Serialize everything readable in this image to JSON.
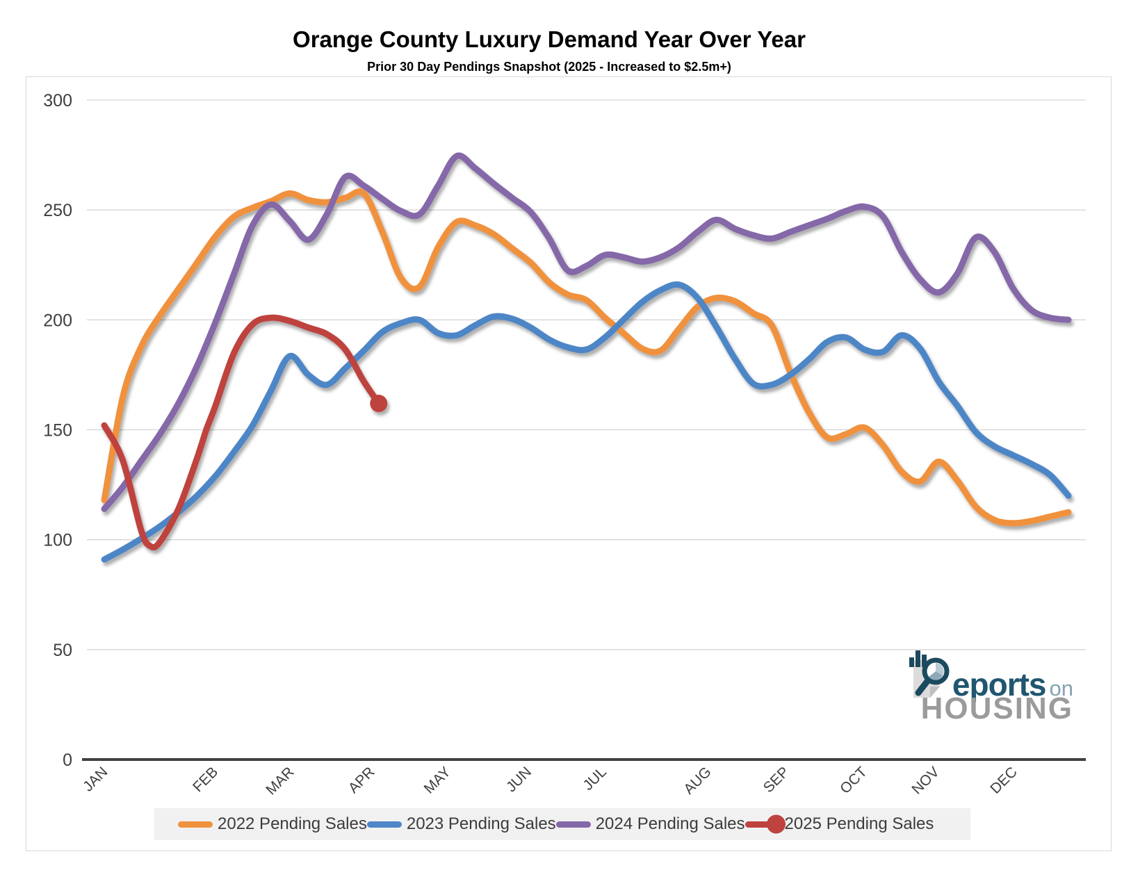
{
  "title": "Orange County Luxury Demand Year Over Year",
  "subtitle": "Prior 30 Day Pendings Snapshot (2025 - Increased to $2.5m+)",
  "logo": {
    "word_reports": "eports",
    "word_on": "on",
    "word_housing": "HOUSING"
  },
  "chart_data": {
    "type": "line",
    "title": "Orange County Luxury Demand Year Over Year",
    "subtitle": "Prior 30 Day Pendings Snapshot (2025 - Increased to $2.5m+)",
    "xlabel": "",
    "ylabel": "",
    "ylim": [
      0,
      300
    ],
    "y_ticks": [
      0,
      50,
      100,
      150,
      200,
      250,
      300
    ],
    "grid": "horizontal",
    "legend_position": "bottom",
    "x_unit": "week-of-year",
    "months": [
      {
        "label": "JAN",
        "week": 1
      },
      {
        "label": "FEB",
        "week": 6.95
      },
      {
        "label": "MAR",
        "week": 11.05
      },
      {
        "label": "APR",
        "week": 15.4
      },
      {
        "label": "MAY",
        "week": 19.5
      },
      {
        "label": "JUN",
        "week": 23.85
      },
      {
        "label": "JUL",
        "week": 27.9
      },
      {
        "label": "AUG",
        "week": 33.55
      },
      {
        "label": "SEP",
        "week": 37.75
      },
      {
        "label": "OCT",
        "week": 41.95
      },
      {
        "label": "NOV",
        "week": 45.85
      },
      {
        "label": "DEC",
        "week": 50.05
      }
    ],
    "colors": {
      "grid": "#d6d6d6",
      "axis": "#404040",
      "tick_text": "#3f3f3f"
    },
    "series": [
      {
        "name": "2022 Pending Sales",
        "color": "#f0913e",
        "end_marker": false,
        "points": [
          [
            1,
            118
          ],
          [
            2,
            165
          ],
          [
            3,
            188
          ],
          [
            4,
            202
          ],
          [
            5,
            214
          ],
          [
            6,
            226
          ],
          [
            7,
            238
          ],
          [
            8,
            247
          ],
          [
            9,
            251
          ],
          [
            10,
            254
          ],
          [
            11,
            257.5
          ],
          [
            12,
            254.5
          ],
          [
            13,
            253.5
          ],
          [
            14,
            255.5
          ],
          [
            15,
            257.5
          ],
          [
            16,
            240
          ],
          [
            17,
            219
          ],
          [
            18,
            215
          ],
          [
            19,
            233
          ],
          [
            20,
            244.5
          ],
          [
            21,
            243
          ],
          [
            22,
            239
          ],
          [
            23,
            232.5
          ],
          [
            24,
            226
          ],
          [
            25,
            217
          ],
          [
            26,
            211.5
          ],
          [
            27,
            209
          ],
          [
            28,
            201
          ],
          [
            29,
            194
          ],
          [
            30,
            187
          ],
          [
            31,
            186
          ],
          [
            32,
            196
          ],
          [
            33,
            206
          ],
          [
            34,
            210
          ],
          [
            35,
            208.5
          ],
          [
            36,
            203
          ],
          [
            37,
            197.5
          ],
          [
            38,
            176
          ],
          [
            39,
            158
          ],
          [
            40,
            146.5
          ],
          [
            41,
            148
          ],
          [
            42,
            151
          ],
          [
            43,
            143
          ],
          [
            44,
            131
          ],
          [
            45,
            126.5
          ],
          [
            46,
            135.5
          ],
          [
            47,
            127
          ],
          [
            48,
            115
          ],
          [
            49,
            109
          ],
          [
            50,
            107.5
          ],
          [
            51,
            108.5
          ],
          [
            52,
            110.5
          ],
          [
            53,
            112.5
          ]
        ]
      },
      {
        "name": "2023 Pending Sales",
        "color": "#4e86c6",
        "end_marker": false,
        "points": [
          [
            1,
            91
          ],
          [
            2,
            95.5
          ],
          [
            3,
            100.5
          ],
          [
            4,
            106
          ],
          [
            5,
            112.5
          ],
          [
            6,
            120
          ],
          [
            7,
            129
          ],
          [
            8,
            140
          ],
          [
            9,
            152
          ],
          [
            10,
            168
          ],
          [
            11,
            183.5
          ],
          [
            12,
            175
          ],
          [
            13,
            170.5
          ],
          [
            14,
            178
          ],
          [
            15,
            186
          ],
          [
            16,
            194.5
          ],
          [
            17,
            198.5
          ],
          [
            18,
            200
          ],
          [
            19,
            194
          ],
          [
            20,
            193
          ],
          [
            21,
            197.5
          ],
          [
            22,
            201.5
          ],
          [
            23,
            200.5
          ],
          [
            24,
            196.5
          ],
          [
            25,
            191
          ],
          [
            26,
            187.5
          ],
          [
            27,
            186.5
          ],
          [
            28,
            192
          ],
          [
            29,
            200
          ],
          [
            30,
            208
          ],
          [
            31,
            213.5
          ],
          [
            32,
            216
          ],
          [
            33,
            210
          ],
          [
            34,
            197
          ],
          [
            35,
            182.5
          ],
          [
            36,
            171
          ],
          [
            37,
            170.5
          ],
          [
            38,
            175
          ],
          [
            39,
            182
          ],
          [
            40,
            190
          ],
          [
            41,
            192
          ],
          [
            42,
            186.5
          ],
          [
            43,
            185.5
          ],
          [
            44,
            193
          ],
          [
            45,
            187
          ],
          [
            46,
            172
          ],
          [
            47,
            161
          ],
          [
            48,
            149
          ],
          [
            49,
            142.5
          ],
          [
            50,
            138.5
          ],
          [
            51,
            134.5
          ],
          [
            52,
            129.5
          ],
          [
            53,
            120
          ]
        ]
      },
      {
        "name": "2024 Pending Sales",
        "color": "#8467a8",
        "end_marker": false,
        "points": [
          [
            1,
            114
          ],
          [
            2,
            124
          ],
          [
            3,
            136
          ],
          [
            4,
            148
          ],
          [
            5,
            162
          ],
          [
            6,
            179
          ],
          [
            7,
            199
          ],
          [
            8,
            221
          ],
          [
            9,
            243
          ],
          [
            10,
            252.5
          ],
          [
            11,
            245
          ],
          [
            12,
            236.5
          ],
          [
            13,
            248
          ],
          [
            14,
            265
          ],
          [
            15,
            261
          ],
          [
            16,
            255
          ],
          [
            17,
            249.5
          ],
          [
            18,
            248
          ],
          [
            19,
            261
          ],
          [
            20,
            274.5
          ],
          [
            21,
            269
          ],
          [
            22,
            262
          ],
          [
            23,
            255.5
          ],
          [
            24,
            249
          ],
          [
            25,
            237
          ],
          [
            26,
            222.5
          ],
          [
            27,
            224.5
          ],
          [
            28,
            229.5
          ],
          [
            29,
            228.5
          ],
          [
            30,
            226.5
          ],
          [
            31,
            228.5
          ],
          [
            32,
            233
          ],
          [
            33,
            240
          ],
          [
            34,
            245.5
          ],
          [
            35,
            241.5
          ],
          [
            36,
            238.5
          ],
          [
            37,
            237
          ],
          [
            38,
            240
          ],
          [
            39,
            243
          ],
          [
            40,
            246
          ],
          [
            41,
            249.5
          ],
          [
            42,
            251.5
          ],
          [
            43,
            247
          ],
          [
            44,
            231
          ],
          [
            45,
            218.5
          ],
          [
            46,
            212.5
          ],
          [
            47,
            221
          ],
          [
            48,
            237.5
          ],
          [
            49,
            231
          ],
          [
            50,
            214.5
          ],
          [
            51,
            204.5
          ],
          [
            52,
            201
          ],
          [
            53,
            200
          ]
        ]
      },
      {
        "name": "2025 Pending Sales",
        "color": "#be423e",
        "end_marker": true,
        "points": [
          [
            1,
            152
          ],
          [
            2,
            136
          ],
          [
            3,
            104
          ],
          [
            3.5,
            97
          ],
          [
            4,
            99
          ],
          [
            5,
            114
          ],
          [
            6,
            137
          ],
          [
            6.5,
            150
          ],
          [
            7,
            161
          ],
          [
            8,
            185
          ],
          [
            9,
            198
          ],
          [
            10,
            201
          ],
          [
            11,
            199.5
          ],
          [
            12,
            196.5
          ],
          [
            13,
            193.5
          ],
          [
            14,
            186.5
          ],
          [
            15,
            172
          ],
          [
            15.8,
            162
          ]
        ]
      }
    ]
  }
}
